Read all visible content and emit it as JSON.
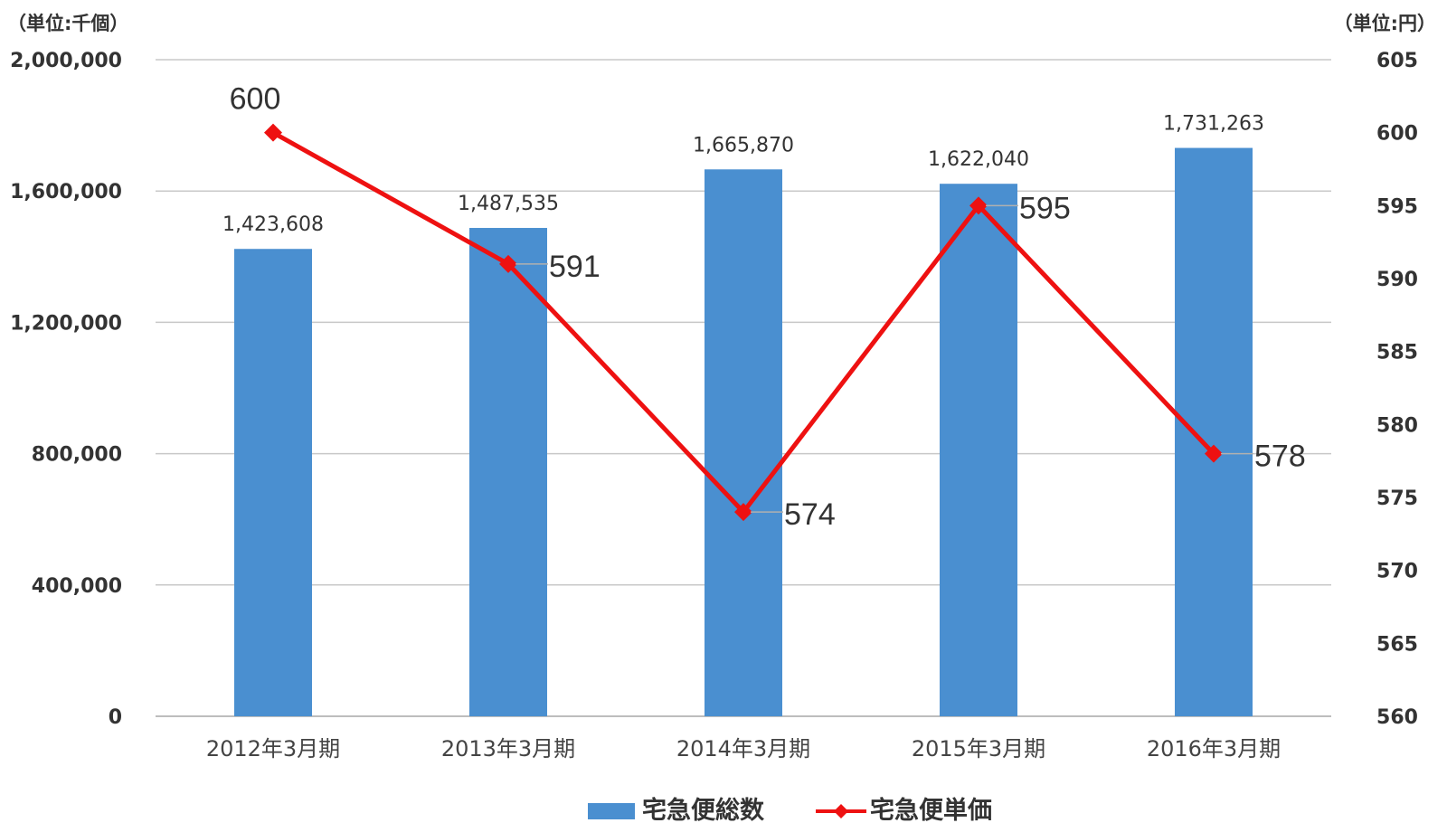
{
  "chart_data": {
    "type": "bar",
    "categories": [
      "2012年3月期",
      "2013年3月期",
      "2014年3月期",
      "2015年3月期",
      "2016年3月期"
    ],
    "left_unit_label": "（単位:千個）",
    "right_unit_label": "（単位:円）",
    "left_axis": {
      "ylim": [
        0,
        2000000
      ],
      "ticks": [
        "0",
        "400,000",
        "800,000",
        "1,200,000",
        "1,600,000",
        "2,000,000"
      ]
    },
    "right_axis": {
      "ylim": [
        560,
        605
      ],
      "ticks": [
        "560",
        "565",
        "570",
        "575",
        "580",
        "585",
        "590",
        "595",
        "600",
        "605"
      ]
    },
    "series": [
      {
        "name": "宅急便総数",
        "type": "bar",
        "axis": "left",
        "color": "#4a8fd0",
        "values": [
          1423608,
          1487535,
          1665870,
          1622040,
          1731263
        ],
        "labels": [
          "1,423,608",
          "1,487,535",
          "1,665,870",
          "1,622,040",
          "1,731,263"
        ]
      },
      {
        "name": "宅急便単価",
        "type": "line",
        "axis": "right",
        "color": "#ee1111",
        "marker": "diamond",
        "values": [
          600,
          591,
          574,
          595,
          578
        ],
        "labels": [
          "600",
          "591",
          "574",
          "595",
          "578"
        ]
      }
    ],
    "grid": true,
    "legend_position": "bottom-center"
  }
}
